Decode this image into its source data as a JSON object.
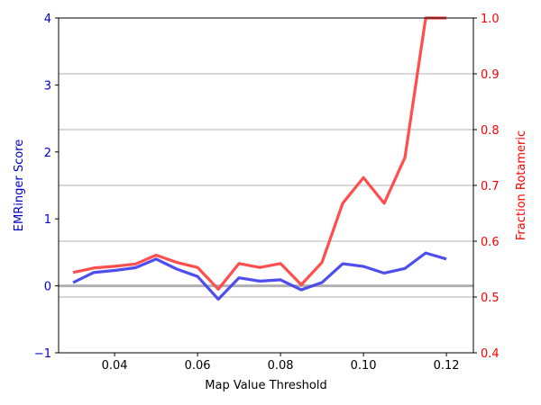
{
  "chart_data": {
    "type": "line",
    "xlabel": "Map Value Threshold",
    "ylabel_left": "EMRinger Score",
    "ylabel_right": "Fraction Rotameric",
    "xlim": [
      0.0265,
      0.1265
    ],
    "ylim_left": [
      -1,
      4
    ],
    "ylim_right": [
      0.4,
      1.0
    ],
    "x_ticks": [
      0.04,
      0.06,
      0.08,
      0.1,
      0.12
    ],
    "x_tick_labels": [
      "0.04",
      "0.06",
      "0.08",
      "0.10",
      "0.12"
    ],
    "y_left_ticks": [
      -1,
      0,
      1,
      2,
      3,
      4
    ],
    "y_left_tick_labels": [
      "−1",
      "0",
      "1",
      "2",
      "3",
      "4"
    ],
    "y_right_ticks": [
      0.4,
      0.5,
      0.6,
      0.7,
      0.8,
      0.9,
      1.0
    ],
    "y_right_tick_labels": [
      "0.4",
      "0.5",
      "0.6",
      "0.7",
      "0.8",
      "0.9",
      "1.0"
    ],
    "grid": "horizontal lines at right-axis ticks",
    "zero_line": 0,
    "x": [
      0.03,
      0.035,
      0.04,
      0.045,
      0.05,
      0.055,
      0.06,
      0.065,
      0.07,
      0.075,
      0.08,
      0.085,
      0.09,
      0.095,
      0.1,
      0.105,
      0.11,
      0.115,
      0.12
    ],
    "series": [
      {
        "axis": "left",
        "color": "#4444ee",
        "values": [
          0.05,
          0.2,
          0.23,
          0.27,
          0.4,
          0.25,
          0.14,
          -0.2,
          0.12,
          0.07,
          0.09,
          -0.06,
          0.05,
          0.33,
          0.29,
          0.19,
          0.26,
          0.49,
          0.4
        ]
      },
      {
        "axis": "right",
        "color": "#ff4444",
        "values": [
          0.544,
          0.552,
          0.555,
          0.559,
          0.575,
          0.562,
          0.553,
          0.514,
          0.56,
          0.553,
          0.56,
          0.522,
          0.562,
          0.668,
          0.714,
          0.668,
          0.75,
          1.0,
          1.0
        ]
      }
    ]
  }
}
